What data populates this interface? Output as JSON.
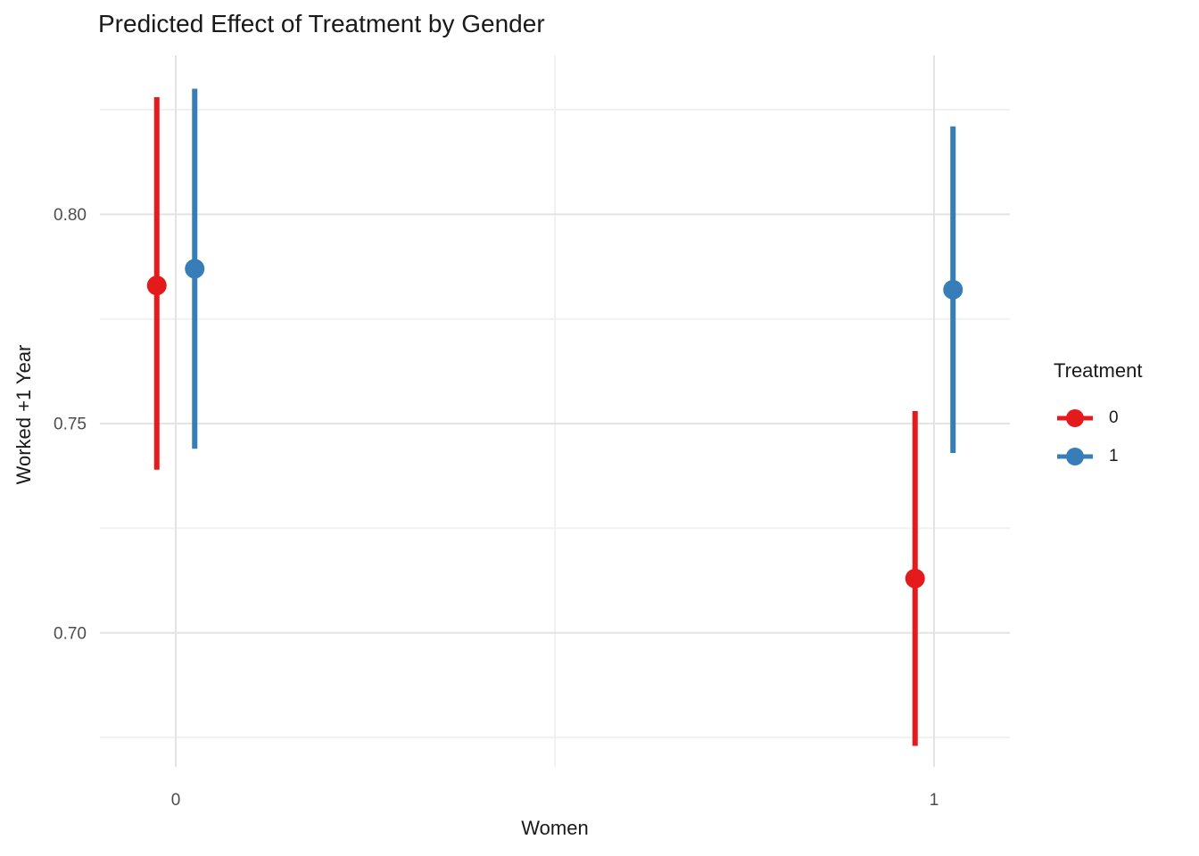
{
  "chart_data": {
    "type": "pointrange",
    "title": "Predicted Effect of Treatment by Gender",
    "xlabel": "Women",
    "ylabel": "Worked +1 Year",
    "xtick_values": [
      0,
      1
    ],
    "xtick_labels": [
      "0",
      "1"
    ],
    "ytick_values": [
      0.7,
      0.75,
      0.8
    ],
    "ytick_labels": [
      "0.70",
      "0.75",
      "0.80"
    ],
    "y_minor_values": [
      0.675,
      0.725,
      0.775,
      0.825
    ],
    "x_minor_values": [
      0.5
    ],
    "xlim": [
      -0.1,
      1.1
    ],
    "ylim": [
      0.668,
      0.838
    ],
    "grid": true,
    "legend": {
      "title": "Treatment",
      "position": "right",
      "entries": [
        {
          "label": "0",
          "color": "#E41A1C"
        },
        {
          "label": "1",
          "color": "#377EB8"
        }
      ]
    },
    "series": [
      {
        "name": "0",
        "color": "#E41A1C",
        "dodge": -0.025,
        "points": [
          {
            "x": 0,
            "estimate": 0.783,
            "ci_low": 0.739,
            "ci_high": 0.828
          },
          {
            "x": 1,
            "estimate": 0.713,
            "ci_low": 0.673,
            "ci_high": 0.753
          }
        ]
      },
      {
        "name": "1",
        "color": "#377EB8",
        "dodge": 0.025,
        "points": [
          {
            "x": 0,
            "estimate": 0.787,
            "ci_low": 0.744,
            "ci_high": 0.83
          },
          {
            "x": 1,
            "estimate": 0.782,
            "ci_low": 0.743,
            "ci_high": 0.821
          }
        ]
      }
    ],
    "colors": {
      "background": "#FFFFFF",
      "grid_major": "#E3E3E3",
      "grid_minor": "#F1F1F1",
      "axis_text": "#4D4D4D",
      "title_text": "#1A1A1A"
    }
  }
}
